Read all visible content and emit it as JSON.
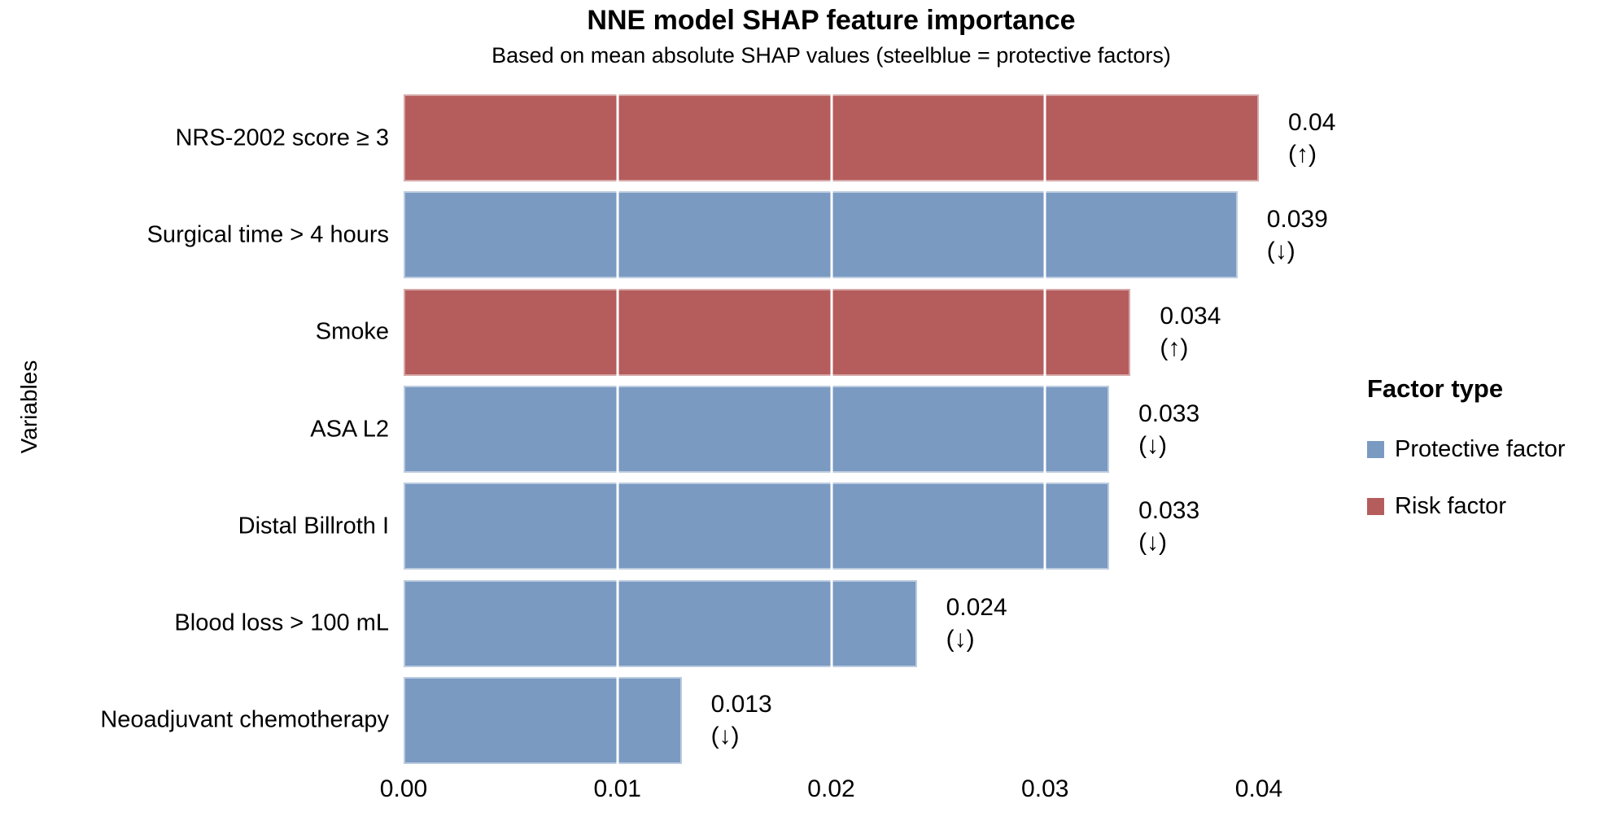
{
  "colors": {
    "background": "#FFFFFF",
    "text": "#000000",
    "protective": "#7A9AC2",
    "risk": "#B55C5C",
    "protective_border": "#BCCBDF",
    "risk_border": "#D6A9A9",
    "gridline": "#FFFFFF"
  },
  "legend": {
    "title": "Factor type",
    "items": [
      {
        "label": "Protective factor",
        "type": "protective",
        "color": "#7A9AC2"
      },
      {
        "label": "Risk factor",
        "type": "risk",
        "color": "#B55C5C"
      }
    ]
  },
  "chart_data": {
    "type": "bar",
    "orientation": "horizontal",
    "title": "NNE model SHAP feature importance",
    "subtitle": "Based on mean absolute SHAP values (steelblue = protective factors)",
    "xlabel": "",
    "ylabel": "Variables",
    "xlim": [
      0,
      0.04
    ],
    "xticks": [
      0.0,
      0.01,
      0.02,
      0.03,
      0.04
    ],
    "xtick_labels": [
      "0.00",
      "0.01",
      "0.02",
      "0.03",
      "0.04"
    ],
    "grid": "white vertical gridlines at major ticks, visible over bars only",
    "legend_position": "right",
    "bars": [
      {
        "category": "NRS-2002 score ≥ 3",
        "value": 0.04,
        "value_label": "0.04",
        "direction": "(↑)",
        "factor_type": "risk"
      },
      {
        "category": "Surgical time > 4 hours",
        "value": 0.039,
        "value_label": "0.039",
        "direction": "(↓)",
        "factor_type": "protective"
      },
      {
        "category": "Smoke",
        "value": 0.034,
        "value_label": "0.034",
        "direction": "(↑)",
        "factor_type": "risk"
      },
      {
        "category": "ASA L2",
        "value": 0.033,
        "value_label": "0.033",
        "direction": "(↓)",
        "factor_type": "protective"
      },
      {
        "category": "Distal Billroth I",
        "value": 0.033,
        "value_label": "0.033",
        "direction": "(↓)",
        "factor_type": "protective"
      },
      {
        "category": "Blood loss > 100 mL",
        "value": 0.024,
        "value_label": "0.024",
        "direction": "(↓)",
        "factor_type": "protective"
      },
      {
        "category": "Neoadjuvant chemotherapy",
        "value": 0.013,
        "value_label": "0.013",
        "direction": "(↓)",
        "factor_type": "protective"
      }
    ]
  }
}
